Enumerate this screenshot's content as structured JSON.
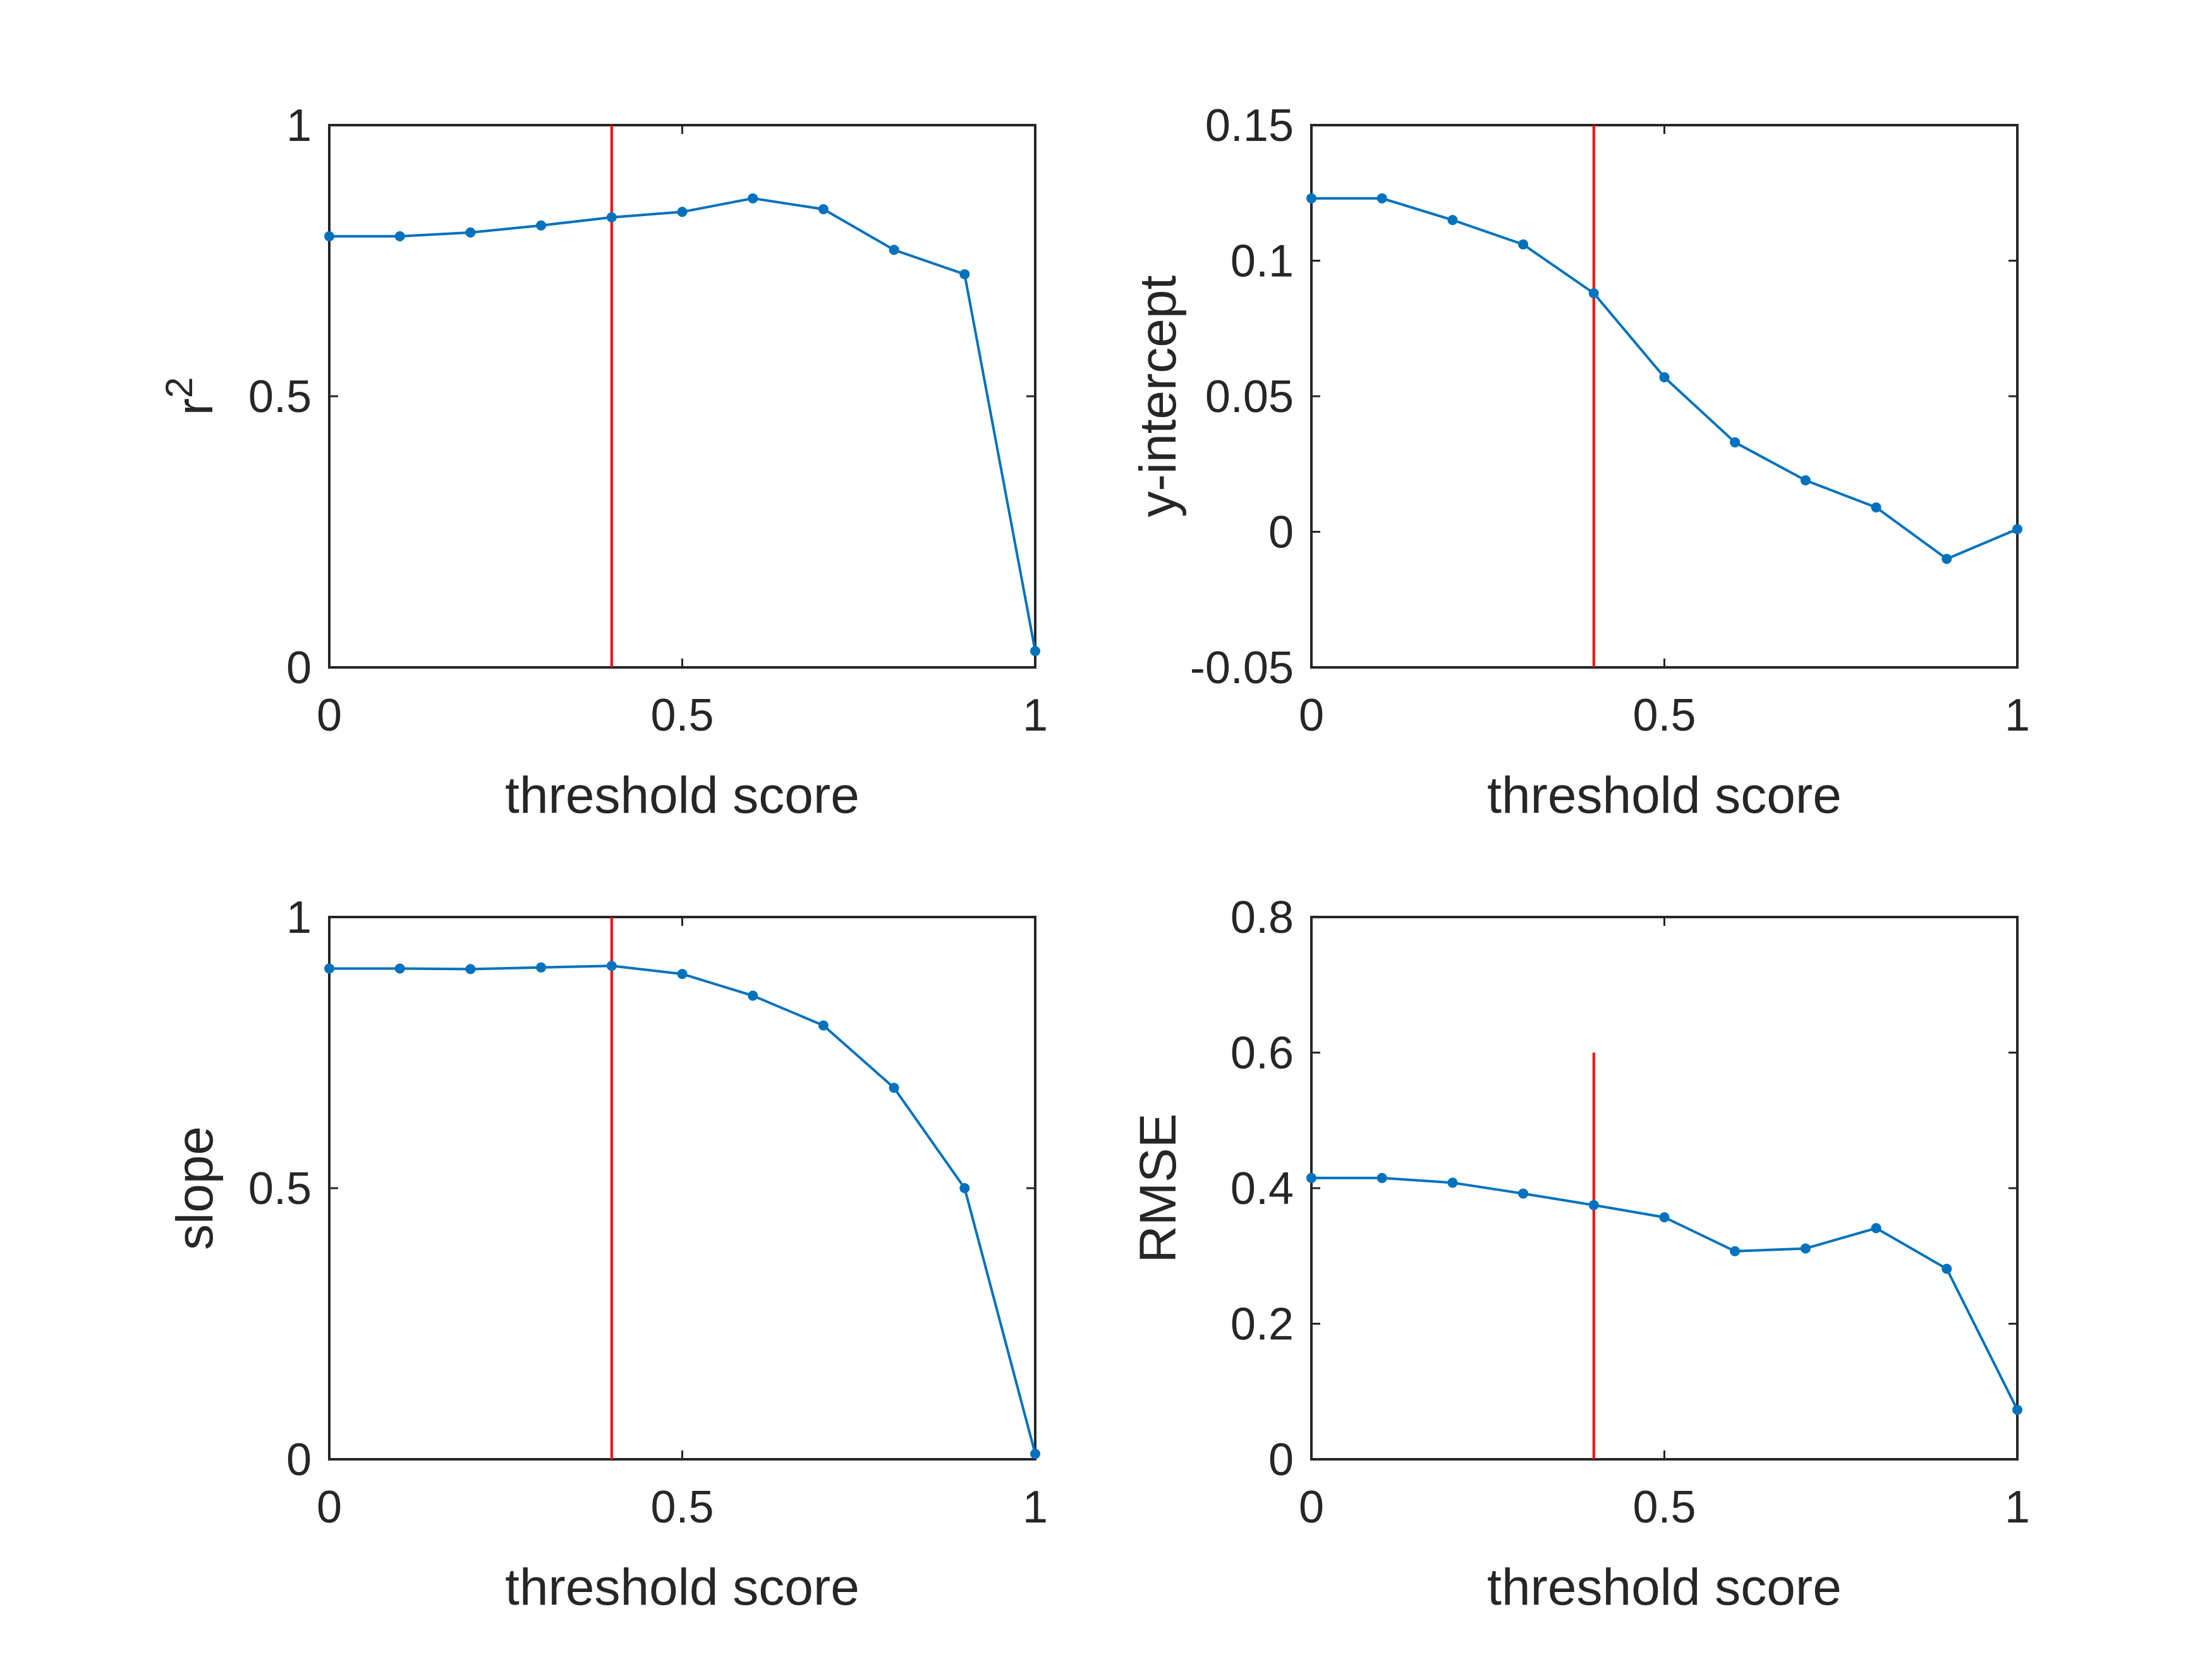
{
  "chart_data": [
    {
      "type": "line",
      "xlabel": "threshold score",
      "ylabel": "r",
      "ylabel_superscript": "2",
      "xlim": [
        0,
        1
      ],
      "ylim": [
        0,
        1
      ],
      "xticks": [
        "0",
        "0.5",
        "1"
      ],
      "yticks": [
        "0",
        "0.5",
        "1"
      ],
      "x": [
        0,
        0.1,
        0.2,
        0.3,
        0.4,
        0.5,
        0.6,
        0.7,
        0.8,
        0.9,
        1.0
      ],
      "series": [
        {
          "values": [
            0.795,
            0.795,
            0.802,
            0.815,
            0.83,
            0.84,
            0.865,
            0.845,
            0.77,
            0.725,
            0.03
          ]
        }
      ],
      "reference_line": {
        "x": 0.4,
        "y_range": [
          0,
          1
        ]
      },
      "grid": false
    },
    {
      "type": "line",
      "xlabel": "threshold score",
      "ylabel": "y-intercept",
      "xlim": [
        0,
        1
      ],
      "ylim": [
        -0.05,
        0.15
      ],
      "xticks": [
        "0",
        "0.5",
        "1"
      ],
      "yticks": [
        "-0.05",
        "0",
        "0.05",
        "0.1",
        "0.15"
      ],
      "x": [
        0,
        0.1,
        0.2,
        0.3,
        0.4,
        0.5,
        0.6,
        0.7,
        0.8,
        0.9,
        1.0
      ],
      "series": [
        {
          "values": [
            0.123,
            0.123,
            0.115,
            0.106,
            0.088,
            0.057,
            0.033,
            0.019,
            0.009,
            -0.01,
            0.001
          ]
        }
      ],
      "reference_line": {
        "x": 0.4,
        "y_range": [
          -0.05,
          0.15
        ]
      },
      "grid": false
    },
    {
      "type": "line",
      "xlabel": "threshold score",
      "ylabel": "slope",
      "xlim": [
        0,
        1
      ],
      "ylim": [
        0,
        1
      ],
      "xticks": [
        "0",
        "0.5",
        "1"
      ],
      "yticks": [
        "0",
        "0.5",
        "1"
      ],
      "x": [
        0,
        0.1,
        0.2,
        0.3,
        0.4,
        0.5,
        0.6,
        0.7,
        0.8,
        0.9,
        1.0
      ],
      "series": [
        {
          "values": [
            0.905,
            0.905,
            0.904,
            0.907,
            0.91,
            0.895,
            0.855,
            0.8,
            0.685,
            0.5,
            0.01
          ]
        }
      ],
      "reference_line": {
        "x": 0.4,
        "y_range": [
          0,
          1
        ]
      },
      "grid": false
    },
    {
      "type": "line",
      "xlabel": "threshold score",
      "ylabel": "RMSE",
      "xlim": [
        0,
        1
      ],
      "ylim": [
        0,
        0.8
      ],
      "xticks": [
        "0",
        "0.5",
        "1"
      ],
      "yticks": [
        "0",
        "0.2",
        "0.4",
        "0.6",
        "0.8"
      ],
      "x": [
        0,
        0.1,
        0.2,
        0.3,
        0.4,
        0.5,
        0.6,
        0.7,
        0.8,
        0.9,
        1.0
      ],
      "series": [
        {
          "values": [
            0.415,
            0.415,
            0.408,
            0.392,
            0.375,
            0.357,
            0.307,
            0.311,
            0.341,
            0.281,
            0.073
          ]
        }
      ],
      "reference_line": {
        "x": 0.4,
        "y_range": [
          0,
          0.6
        ]
      },
      "grid": false
    }
  ],
  "colors": {
    "series": "#0072BD",
    "reference_line": "#FF0000",
    "axes": "#262626",
    "background": "#FFFFFF"
  }
}
